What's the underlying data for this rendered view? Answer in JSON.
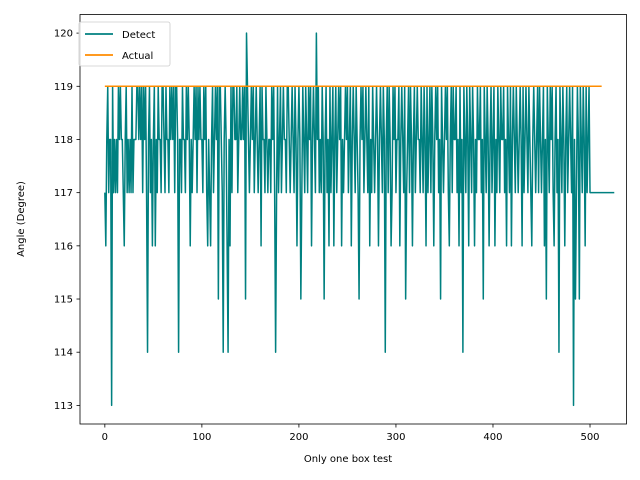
{
  "chart_data": {
    "type": "line",
    "title": "",
    "xlabel": "Only one box test",
    "ylabel": "Angle (Degree)",
    "xlim": [
      -25.6,
      537.6
    ],
    "ylim": [
      112.65,
      120.35
    ],
    "xticks": [
      0,
      100,
      200,
      300,
      400,
      500
    ],
    "yticks": [
      113,
      114,
      115,
      116,
      117,
      118,
      119,
      120
    ],
    "grid": false,
    "legend_position": "top-left",
    "series": [
      {
        "name": "Detect",
        "color": "#008080",
        "x_start": 0,
        "values": [
          117,
          116,
          118,
          119,
          117,
          118,
          118,
          113,
          119,
          117,
          118,
          117,
          118,
          117,
          119,
          118,
          119,
          118,
          118,
          117,
          116,
          118,
          119,
          117,
          118,
          117,
          118,
          117,
          119,
          117,
          118,
          118,
          118,
          119,
          119,
          118,
          119,
          118,
          119,
          117,
          119,
          118,
          119,
          117,
          114,
          118,
          119,
          117,
          118,
          116,
          118,
          119,
          116,
          118,
          117,
          119,
          118,
          118,
          117,
          119,
          119,
          118,
          117,
          119,
          118,
          118,
          117,
          119,
          118,
          119,
          118,
          119,
          117,
          119,
          119,
          118,
          114,
          118,
          118,
          117,
          119,
          118,
          118,
          117,
          119,
          118,
          119,
          118,
          116,
          118,
          117,
          118,
          119,
          118,
          119,
          117,
          119,
          118,
          119,
          118,
          118,
          117,
          119,
          118,
          119,
          117,
          116,
          118,
          117,
          116,
          118,
          119,
          117,
          118,
          119,
          118,
          119,
          115,
          119,
          119,
          118,
          117,
          114,
          118,
          119,
          118,
          116,
          114,
          118,
          116,
          119,
          117,
          119,
          119,
          118,
          118,
          119,
          117,
          118,
          119,
          118,
          118,
          119,
          118,
          119,
          115,
          120,
          119,
          118,
          117,
          118,
          119,
          118,
          119,
          117,
          118,
          119,
          118,
          117,
          118,
          119,
          116,
          119,
          118,
          118,
          117,
          119,
          118,
          117,
          118,
          118,
          117,
          119,
          118,
          119,
          117,
          114,
          117,
          119,
          117,
          118,
          119,
          117,
          118,
          119,
          118,
          118,
          117,
          119,
          119,
          118,
          117,
          118,
          119,
          118,
          117,
          119,
          118,
          116,
          118,
          119,
          118,
          115,
          117,
          119,
          118,
          117,
          119,
          118,
          117,
          119,
          118,
          119,
          116,
          118,
          119,
          118,
          117,
          120,
          118,
          119,
          117,
          118,
          117,
          119,
          118,
          115,
          118,
          119,
          117,
          118,
          116,
          119,
          117,
          118,
          119,
          116,
          118,
          119,
          117,
          118,
          119,
          118,
          119,
          116,
          118,
          117,
          118,
          119,
          118,
          119,
          117,
          118,
          119,
          116,
          118,
          119,
          118,
          117,
          119,
          118,
          117,
          115,
          118,
          119,
          118,
          119,
          117,
          118,
          119,
          118,
          117,
          119,
          116,
          118,
          117,
          119,
          118,
          117,
          118,
          119,
          118,
          116,
          118,
          119,
          118,
          117,
          119,
          118,
          114,
          118,
          119,
          117,
          119,
          118,
          116,
          117,
          119,
          118,
          119,
          117,
          118,
          118,
          119,
          116,
          118,
          119,
          118,
          117,
          119,
          115,
          117,
          118,
          119,
          117,
          119,
          118,
          116,
          118,
          119,
          117,
          118,
          119,
          118,
          118,
          117,
          119,
          118,
          117,
          119,
          118,
          116,
          119,
          117,
          118,
          119,
          117,
          119,
          118,
          116,
          118,
          119,
          118,
          119,
          117,
          118,
          115,
          119,
          118,
          117,
          118,
          119,
          118,
          119,
          117,
          116,
          118,
          119,
          117,
          119,
          118,
          118,
          119,
          117,
          118,
          116,
          119,
          117,
          118,
          114,
          119,
          118,
          117,
          119,
          118,
          116,
          119,
          118,
          117,
          119,
          118,
          116,
          118,
          117,
          119,
          118,
          118,
          119,
          117,
          118,
          115,
          119,
          118,
          117,
          119,
          118,
          116,
          118,
          119,
          117,
          118,
          119,
          116,
          118,
          117,
          119,
          118,
          117,
          119,
          118,
          118,
          119,
          117,
          118,
          116,
          119,
          118,
          117,
          119,
          116,
          118,
          119,
          118,
          117,
          119,
          118,
          117,
          118,
          119,
          118,
          116,
          119,
          117,
          118,
          119,
          118,
          117,
          119,
          118,
          117,
          116,
          118,
          119,
          118,
          117,
          118,
          119,
          117,
          119,
          118,
          117,
          118,
          119,
          116,
          118,
          115,
          119,
          118,
          117,
          119,
          118,
          119,
          117,
          116,
          118,
          119,
          117,
          118,
          114,
          119,
          118,
          117,
          119,
          118,
          116,
          118,
          119,
          117,
          118,
          119,
          118,
          117,
          119,
          113,
          118,
          115,
          117,
          119,
          118,
          115,
          119,
          118,
          117,
          119,
          118,
          116,
          119,
          117,
          118,
          119,
          117,
          117,
          117,
          117,
          117,
          117,
          117,
          117,
          117,
          117,
          117,
          117,
          117,
          117,
          117,
          117,
          117,
          117,
          117,
          117,
          117,
          117,
          117,
          117,
          117,
          117
        ]
      },
      {
        "name": "Actual",
        "color": "#ff8c00",
        "x": [
          0,
          512
        ],
        "values": [
          119,
          119
        ]
      }
    ]
  }
}
